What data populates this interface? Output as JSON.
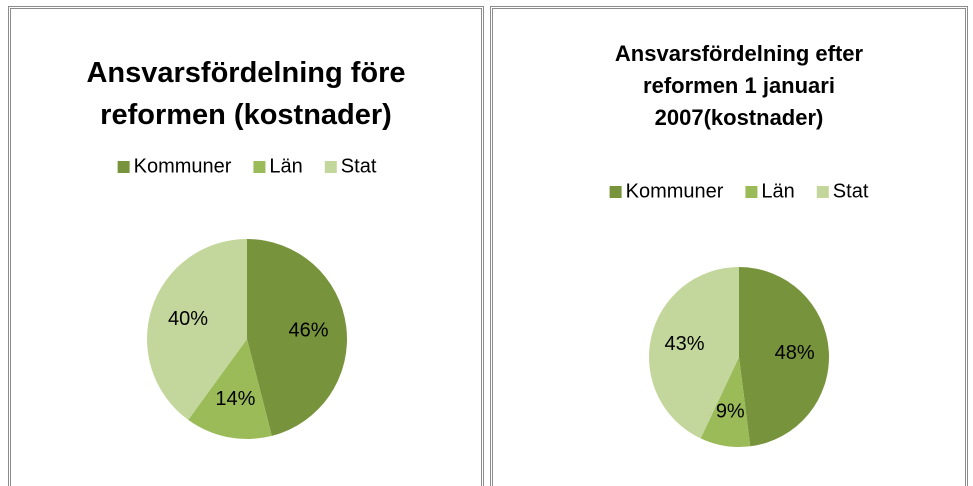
{
  "chart_data": [
    {
      "type": "pie",
      "title": "Ansvarsfördelning före reformen (kostnader)",
      "categories": [
        "Kommuner",
        "Län",
        "Stat"
      ],
      "values": [
        46,
        14,
        40
      ],
      "value_labels": [
        "46%",
        "14%",
        "40%"
      ],
      "colors": [
        "#77933c",
        "#9bbb59",
        "#c3d69b"
      ],
      "legend": "top"
    },
    {
      "type": "pie",
      "title": "Ansvarsfördelning efter reformen 1 januari 2007(kostnader)",
      "categories": [
        "Kommuner",
        "Län",
        "Stat"
      ],
      "values": [
        48,
        9,
        43
      ],
      "value_labels": [
        "48%",
        "9%",
        "43%"
      ],
      "colors": [
        "#77933c",
        "#9bbb59",
        "#c3d69b"
      ],
      "legend": "top"
    }
  ]
}
